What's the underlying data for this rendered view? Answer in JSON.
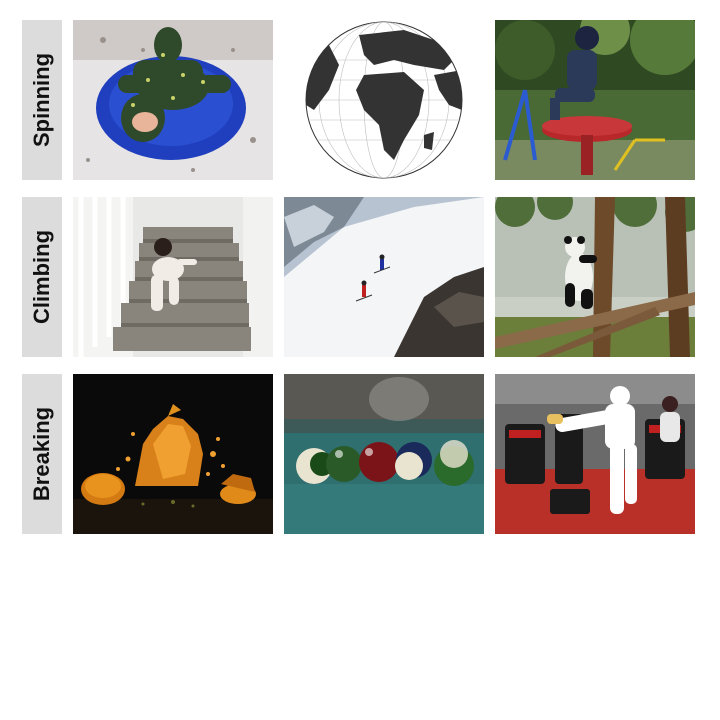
{
  "rows": [
    {
      "label": "Spinning",
      "images": [
        "baby-snowsuit-on-blue-sled",
        "earth-globe",
        "child-on-spinning-playground-disc"
      ]
    },
    {
      "label": "Climbing",
      "images": [
        "toddler-crawling-up-stairs",
        "skiers-climbing-snowy-slope",
        "panda-climbing-tree"
      ]
    },
    {
      "label": "Breaking",
      "images": [
        "pumpkin-exploding",
        "billiard-balls-break",
        "martial-arts-kick-breaking"
      ]
    }
  ],
  "colors": {
    "label_bg": "#dcdcdc",
    "label_text": "#111111",
    "page_bg": "#ffffff"
  }
}
